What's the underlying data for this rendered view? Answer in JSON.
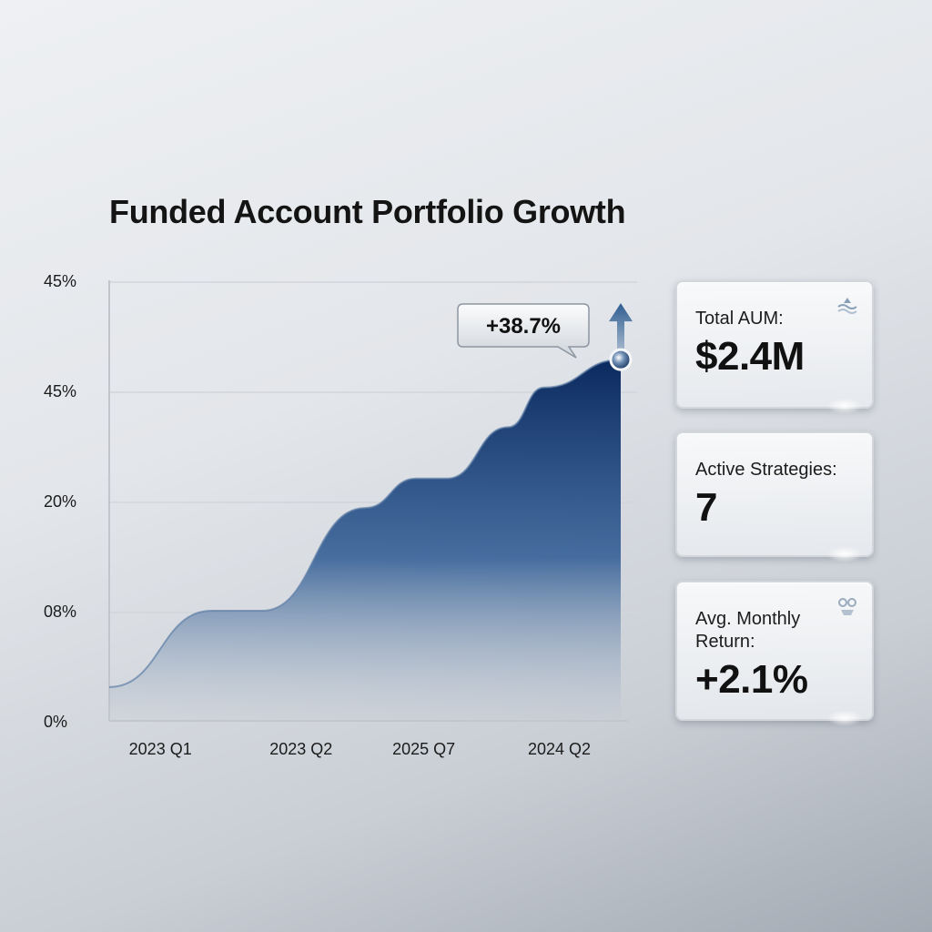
{
  "title": "Funded Account Portfolio Growth",
  "chart_data": {
    "type": "area",
    "title": "Funded Account Portfolio Growth",
    "x_ticks": [
      "2023 Q1",
      "2023 Q2",
      "2025 Q7",
      "2024 Q2"
    ],
    "y_ticks": [
      "45%",
      "45%",
      "20%",
      "08%",
      "0%"
    ],
    "x": [
      0,
      0.2,
      0.3,
      0.5,
      0.6,
      0.66,
      0.78,
      0.85,
      1.0
    ],
    "values": [
      2.3,
      7.5,
      7.5,
      14.5,
      16.5,
      16.5,
      20,
      22.7,
      24.6
    ],
    "ylim": [
      0,
      30
    ],
    "annotation": "+38.7%",
    "fill_colors": [
      "#0b2a5f",
      "#2d5a93",
      "#c6ccd4"
    ],
    "grid": true
  },
  "cards": {
    "aum": {
      "label": "Total AUM:",
      "value": "$2.4M",
      "icon": "waves-icon"
    },
    "strategies": {
      "label": "Active Strategies:",
      "value": "7"
    },
    "return": {
      "label": "Avg. Monthly Return:",
      "value": "+2.1%",
      "icon": "emblem-icon"
    }
  }
}
